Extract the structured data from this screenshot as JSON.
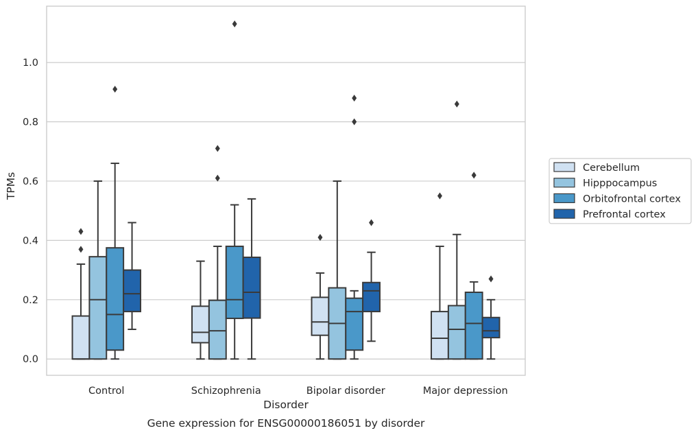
{
  "chart_data": {
    "type": "box",
    "xlabel": "Disorder",
    "ylabel": "TPMs",
    "caption": "Gene expression for ENSG00000186051 by disorder",
    "ylim": [
      -0.055,
      1.19
    ],
    "yticks": [
      "0.0",
      "0.2",
      "0.4",
      "0.6",
      "0.8",
      "1.0"
    ],
    "ytick_values": [
      0.0,
      0.2,
      0.4,
      0.6,
      0.8,
      1.0
    ],
    "grid": "horizontal",
    "legend_position": "right",
    "categories": [
      "Control",
      "Schizophrenia",
      "Bipolar disorder",
      "Major depression"
    ],
    "series": [
      {
        "name": "Cerebellum",
        "color": "#d0e1f2",
        "boxes": [
          {
            "whisker_low": 0.0,
            "q1": 0.0,
            "median": 0.0,
            "q3": 0.145,
            "whisker_high": 0.32,
            "outliers": [
              0.37,
              0.43
            ]
          },
          {
            "whisker_low": 0.0,
            "q1": 0.055,
            "median": 0.09,
            "q3": 0.178,
            "whisker_high": 0.33,
            "outliers": []
          },
          {
            "whisker_low": 0.0,
            "q1": 0.08,
            "median": 0.125,
            "q3": 0.208,
            "whisker_high": 0.29,
            "outliers": [
              0.41
            ]
          },
          {
            "whisker_low": 0.0,
            "q1": 0.0,
            "median": 0.07,
            "q3": 0.16,
            "whisker_high": 0.38,
            "outliers": [
              0.55
            ]
          }
        ]
      },
      {
        "name": "Hipppocampus",
        "color": "#94c4df",
        "boxes": [
          {
            "whisker_low": 0.0,
            "q1": 0.0,
            "median": 0.2,
            "q3": 0.345,
            "whisker_high": 0.6,
            "outliers": []
          },
          {
            "whisker_low": 0.0,
            "q1": 0.0,
            "median": 0.095,
            "q3": 0.198,
            "whisker_high": 0.38,
            "outliers": [
              0.61,
              0.71
            ]
          },
          {
            "whisker_low": 0.0,
            "q1": 0.0,
            "median": 0.12,
            "q3": 0.24,
            "whisker_high": 0.6,
            "outliers": []
          },
          {
            "whisker_low": 0.0,
            "q1": 0.0,
            "median": 0.1,
            "q3": 0.18,
            "whisker_high": 0.42,
            "outliers": [
              0.86
            ]
          }
        ]
      },
      {
        "name": "Orbitofrontal cortex",
        "color": "#4a98c9",
        "boxes": [
          {
            "whisker_low": 0.0,
            "q1": 0.03,
            "median": 0.15,
            "q3": 0.375,
            "whisker_high": 0.66,
            "outliers": [
              0.91
            ]
          },
          {
            "whisker_low": 0.0,
            "q1": 0.137,
            "median": 0.2,
            "q3": 0.38,
            "whisker_high": 0.52,
            "outliers": [
              1.13
            ]
          },
          {
            "whisker_low": 0.0,
            "q1": 0.03,
            "median": 0.16,
            "q3": 0.205,
            "whisker_high": 0.23,
            "outliers": [
              0.8,
              0.88
            ]
          },
          {
            "whisker_low": 0.0,
            "q1": 0.0,
            "median": 0.12,
            "q3": 0.225,
            "whisker_high": 0.26,
            "outliers": [
              0.62
            ]
          }
        ]
      },
      {
        "name": "Prefrontal cortex",
        "color": "#2164ab",
        "boxes": [
          {
            "whisker_low": 0.1,
            "q1": 0.16,
            "median": 0.22,
            "q3": 0.3,
            "whisker_high": 0.46,
            "outliers": []
          },
          {
            "whisker_low": 0.0,
            "q1": 0.138,
            "median": 0.225,
            "q3": 0.343,
            "whisker_high": 0.54,
            "outliers": []
          },
          {
            "whisker_low": 0.06,
            "q1": 0.16,
            "median": 0.23,
            "q3": 0.258,
            "whisker_high": 0.36,
            "outliers": [
              0.46
            ]
          },
          {
            "whisker_low": 0.0,
            "q1": 0.072,
            "median": 0.095,
            "q3": 0.14,
            "whisker_high": 0.2,
            "outliers": [
              0.27
            ]
          }
        ]
      }
    ]
  }
}
